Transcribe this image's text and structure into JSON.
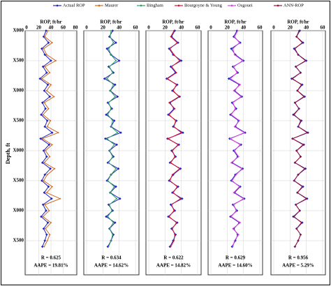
{
  "chart_data": {
    "type": "line",
    "depth_label": "Depth, ft",
    "depth_lim": [
      0,
      4070
    ],
    "depth_ticks": [
      {
        "value": 0,
        "label": "X000"
      },
      {
        "value": 500,
        "label": "X500"
      },
      {
        "value": 1000,
        "label": "X000"
      },
      {
        "value": 1500,
        "label": "X500"
      },
      {
        "value": 2000,
        "label": "X000"
      },
      {
        "value": 2500,
        "label": "X500"
      },
      {
        "value": 3000,
        "label": "X000"
      },
      {
        "value": 3500,
        "label": "X500"
      }
    ],
    "grid": true,
    "depth": [
      0,
      100,
      200,
      300,
      400,
      500,
      600,
      700,
      800,
      900,
      1000,
      1100,
      1200,
      1300,
      1400,
      1500,
      1600,
      1700,
      1800,
      1900,
      2000,
      2100,
      2200,
      2300,
      2400,
      2500,
      2600,
      2700,
      2800,
      2900,
      3000,
      3100,
      3200,
      3300,
      3400,
      3500,
      3600
    ],
    "panels": [
      {
        "title": "ROP, ft/hr",
        "xlim": [
          0,
          80
        ],
        "xticks": [
          0,
          20,
          40,
          60,
          80
        ],
        "series": [
          {
            "name": "Actual ROP",
            "color": "#1f22c4",
            "values": [
              32,
              28,
              36,
              25,
              30,
              40,
              27,
              33,
              22,
              35,
              29,
              38,
              26,
              31,
              24,
              34,
              30,
              42,
              23,
              37,
              28,
              33,
              26,
              39,
              30,
              25,
              36,
              29,
              41,
              27,
              32,
              24,
              35,
              28,
              33,
              30,
              26
            ]
          },
          {
            "name": "Maurer",
            "color": "#cf6a1e",
            "values": [
              35,
              30,
              42,
              28,
              33,
              48,
              30,
              38,
              25,
              40,
              33,
              45,
              29,
              36,
              27,
              39,
              34,
              52,
              26,
              42,
              31,
              38,
              29,
              46,
              34,
              28,
              42,
              33,
              55,
              30,
              37,
              27,
              40,
              31,
              38,
              34,
              29
            ]
          }
        ],
        "annotations": [
          "R = 0.625",
          "AAPE = 19.81%"
        ]
      },
      {
        "title": "ROP, ft/hr",
        "xlim": [
          0,
          60
        ],
        "xticks": [
          0,
          20,
          40,
          60
        ],
        "series": [
          {
            "name": "Actual ROP",
            "color": "#1f22c4",
            "values": [
              32,
              28,
              36,
              25,
              30,
              40,
              27,
              33,
              22,
              35,
              29,
              38,
              26,
              31,
              24,
              34,
              30,
              42,
              23,
              37,
              28,
              33,
              26,
              39,
              30,
              25,
              36,
              29,
              41,
              27,
              32,
              24,
              35,
              28,
              33,
              30,
              26
            ]
          },
          {
            "name": "Bingham",
            "color": "#2e9e5e",
            "values": [
              30,
              29,
              33,
              27,
              30,
              36,
              28,
              32,
              25,
              33,
              29,
              35,
              27,
              30,
              26,
              32,
              30,
              38,
              25,
              34,
              28,
              32,
              27,
              36,
              30,
              26,
              34,
              29,
              37,
              28,
              31,
              26,
              33,
              28,
              32,
              30,
              27
            ]
          }
        ],
        "annotations": [
          "R = 0.634",
          "AAPE = 14.62%"
        ]
      },
      {
        "title": "ROP, ft/hr",
        "xlim": [
          0,
          60
        ],
        "xticks": [
          0,
          20,
          40,
          60
        ],
        "series": [
          {
            "name": "Actual ROP",
            "color": "#1f22c4",
            "values": [
              32,
              28,
              36,
              25,
              30,
              40,
              27,
              33,
              22,
              35,
              29,
              38,
              26,
              31,
              24,
              34,
              30,
              42,
              23,
              37,
              28,
              33,
              26,
              39,
              30,
              25,
              36,
              29,
              41,
              27,
              32,
              24,
              35,
              28,
              33,
              30,
              26
            ]
          },
          {
            "name": "Bourgoyne & Young",
            "color": "#e0102a",
            "values": [
              31,
              27,
              35,
              26,
              31,
              38,
              28,
              34,
              23,
              34,
              30,
              37,
              25,
              32,
              25,
              33,
              31,
              40,
              24,
              36,
              29,
              32,
              27,
              38,
              29,
              26,
              35,
              30,
              39,
              28,
              31,
              25,
              34,
              29,
              32,
              31,
              27
            ]
          }
        ],
        "annotations": [
          "R = 0.622",
          "AAPE = 14.82%"
        ]
      },
      {
        "title": "ROP, ft/hr",
        "xlim": [
          0,
          60
        ],
        "xticks": [
          0,
          20,
          40,
          60
        ],
        "series": [
          {
            "name": "Actual ROP",
            "color": "#1f22c4",
            "values": [
              32,
              28,
              36,
              25,
              30,
              40,
              27,
              33,
              22,
              35,
              29,
              38,
              26,
              31,
              24,
              34,
              30,
              42,
              23,
              37,
              28,
              33,
              26,
              39,
              30,
              25,
              36,
              29,
              41,
              27,
              32,
              24,
              35,
              28,
              33,
              30,
              26
            ]
          },
          {
            "name": "Osgouei",
            "color": "#e040e0",
            "values": [
              33,
              29,
              35,
              27,
              29,
              39,
              28,
              32,
              24,
              36,
              28,
              37,
              27,
              30,
              25,
              35,
              29,
              41,
              24,
              36,
              29,
              34,
              25,
              38,
              31,
              26,
              35,
              28,
              40,
              28,
              31,
              25,
              36,
              27,
              34,
              29,
              27
            ]
          }
        ],
        "annotations": [
          "R = 0.629",
          "AAPE = 14.60%"
        ]
      },
      {
        "title": "ROP, ft/hr",
        "xlim": [
          0,
          60
        ],
        "xticks": [
          0,
          20,
          40,
          60
        ],
        "series": [
          {
            "name": "Actual ROP",
            "color": "#1f22c4",
            "values": [
              32,
              28,
              36,
              25,
              30,
              40,
              27,
              33,
              22,
              35,
              29,
              38,
              26,
              31,
              24,
              34,
              30,
              42,
              23,
              37,
              28,
              33,
              26,
              39,
              30,
              25,
              36,
              29,
              41,
              27,
              32,
              24,
              35,
              28,
              33,
              30,
              26
            ]
          },
          {
            "name": "ANN-ROP",
            "color": "#9b1030",
            "values": [
              31,
              28,
              35,
              26,
              30,
              39,
              27,
              33,
              23,
              34,
              29,
              37,
              26,
              31,
              25,
              33,
              30,
              41,
              23,
              36,
              28,
              33,
              26,
              38,
              30,
              25,
              35,
              29,
              40,
              27,
              32,
              25,
              34,
              28,
              33,
              30,
              26
            ]
          }
        ],
        "annotations": [
          "R = 0.956",
          "AAPE = 5.29%"
        ]
      }
    ]
  }
}
